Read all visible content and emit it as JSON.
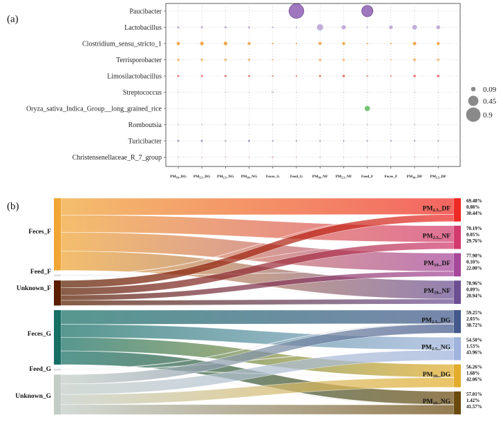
{
  "panel_a_label": "(a)",
  "panel_b_label": "(b)",
  "chart_data": [
    {
      "type": "scatter",
      "subtype": "bubble",
      "genera": [
        "Paucibacter",
        "Lactobacillus",
        "Clostridium_sensu_stricto_1",
        "Terrisporobacter",
        "Limosilactobacillus",
        "Streptococcus",
        "Oryza_sativa_Indica_Group__long_grained_rice",
        "Romboutsia",
        "Turicibacter",
        "Christensenellaceae_R_7_group"
      ],
      "samples": [
        {
          "base": "PM",
          "sub": "10",
          "suf": "_DG"
        },
        {
          "base": "PM",
          "sub": "2.5",
          "suf": "_DG"
        },
        {
          "base": "PM",
          "sub": "2.5",
          "suf": "_NG"
        },
        {
          "base": "PM",
          "sub": "10",
          "suf": "_NG"
        },
        {
          "base": "Feces_G",
          "sub": "",
          "suf": ""
        },
        {
          "base": "Feed_G",
          "sub": "",
          "suf": ""
        },
        {
          "base": "PM",
          "sub": "10",
          "suf": "_NF"
        },
        {
          "base": "PM",
          "sub": "2.5",
          "suf": "_NF"
        },
        {
          "base": "Feed_F",
          "sub": "",
          "suf": ""
        },
        {
          "base": "Feces_F",
          "sub": "",
          "suf": ""
        },
        {
          "base": "PM",
          "sub": "10",
          "suf": "_DF"
        },
        {
          "base": "PM",
          "sub": "2.5",
          "suf": "_DF"
        }
      ],
      "genus_colors": [
        "#8e5fb3",
        "#b9a2d4",
        "#f29b38",
        "#f6b670",
        "#e06a66",
        "#d6d6d6",
        "#5cb85c",
        "#c9c9c9",
        "#9a8fb8",
        "#e9c7cc"
      ],
      "values": [
        [
          0,
          0,
          0,
          0,
          0,
          0.95,
          0,
          0,
          0.55,
          0,
          0,
          0
        ],
        [
          0.02,
          0.02,
          0.02,
          0.02,
          0.01,
          0.01,
          0.18,
          0.08,
          0.01,
          0.06,
          0.1,
          0.07
        ],
        [
          0.05,
          0.06,
          0.06,
          0.04,
          0.01,
          0.01,
          0.04,
          0.04,
          0.01,
          0.01,
          0.05,
          0.04
        ],
        [
          0.03,
          0.03,
          0.03,
          0.03,
          0.01,
          0.01,
          0.03,
          0.03,
          0.01,
          0.01,
          0.04,
          0.03
        ],
        [
          0.02,
          0.02,
          0.02,
          0.02,
          0.01,
          0.01,
          0.02,
          0.03,
          0.01,
          0.01,
          0.03,
          0.03
        ],
        [
          0.01,
          0.01,
          0.01,
          0.01,
          0.03,
          0.01,
          0.01,
          0.01,
          0.01,
          0.01,
          0.01,
          0.01
        ],
        [
          0,
          0,
          0,
          0,
          0,
          0,
          0,
          0,
          0.12,
          0,
          0,
          0
        ],
        [
          0.01,
          0.01,
          0.01,
          0.01,
          0.01,
          0.01,
          0.01,
          0.01,
          0.01,
          0.01,
          0.01,
          0.01
        ],
        [
          0.02,
          0.02,
          0.01,
          0.02,
          0.01,
          0.01,
          0.01,
          0.01,
          0.01,
          0.01,
          0.01,
          0.01
        ],
        [
          0.01,
          0.01,
          0.01,
          0.01,
          0.02,
          0.01,
          0.01,
          0.01,
          0.01,
          0.01,
          0.01,
          0.01
        ]
      ],
      "legend": [
        "0.09",
        "0.45",
        "0.9"
      ],
      "legend_values": [
        0.09,
        0.45,
        0.9
      ],
      "size_max": 1.0
    },
    {
      "type": "sankey",
      "groups": [
        {
          "name": "F",
          "sources": [
            {
              "label": "Feces_F",
              "color": "#f0a535"
            },
            {
              "label": "Feed_F",
              "color": "#dddddd"
            },
            {
              "label": "Unknown_F",
              "color": "#5a1f00"
            }
          ],
          "targets": [
            {
              "base": "PM",
              "sub": "2.5",
              "suf": "_DF",
              "color": "#ee2a24",
              "shares": [
                "69.48%",
                "0.08%",
                "30.44%"
              ],
              "values": [
                69.48,
                0.08,
                30.44
              ]
            },
            {
              "base": "PM",
              "sub": "2.5",
              "suf": "_NF",
              "color": "#d23a6e",
              "shares": [
                "70.19%",
                "0.05%",
                "29.76%"
              ],
              "values": [
                70.19,
                0.05,
                29.76
              ]
            },
            {
              "base": "PM",
              "sub": "10",
              "suf": "_DF",
              "color": "#a6479a",
              "shares": [
                "77.90%",
                "0.10%",
                "22.00%"
              ],
              "values": [
                77.9,
                0.1,
                22.0
              ]
            },
            {
              "base": "PM",
              "sub": "10",
              "suf": "_NF",
              "color": "#6b4f92",
              "shares": [
                "78.96%",
                "0.09%",
                "20.94%"
              ],
              "values": [
                78.96,
                0.09,
                20.94
              ]
            }
          ]
        },
        {
          "name": "G",
          "sources": [
            {
              "label": "Feces_G",
              "color": "#166f64"
            },
            {
              "label": "Feed_G",
              "color": "#dddddd"
            },
            {
              "label": "Unknown_G",
              "color": "#c3cdc6"
            }
          ],
          "targets": [
            {
              "base": "PM",
              "sub": "2.5",
              "suf": "_DG",
              "color": "#43598c",
              "shares": [
                "59.25%",
                "2.03%",
                "38.72%"
              ],
              "values": [
                59.25,
                2.03,
                38.72
              ]
            },
            {
              "base": "PM",
              "sub": "2.5",
              "suf": "_NG",
              "color": "#9fb3dc",
              "shares": [
                "54.50%",
                "1.53%",
                "43.96%"
              ],
              "values": [
                54.5,
                1.53,
                43.96
              ]
            },
            {
              "base": "PM",
              "sub": "10",
              "suf": "_DG",
              "color": "#e3ad2b",
              "shares": [
                "56.26%",
                "1.68%",
                "42.06%"
              ],
              "values": [
                56.26,
                1.68,
                42.06
              ]
            },
            {
              "base": "PM",
              "sub": "10",
              "suf": "_NG",
              "color": "#6b4a0e",
              "shares": [
                "57.01%",
                "1.42%",
                "41.57%"
              ],
              "values": [
                57.01,
                1.42,
                41.57
              ]
            }
          ]
        }
      ]
    }
  ]
}
